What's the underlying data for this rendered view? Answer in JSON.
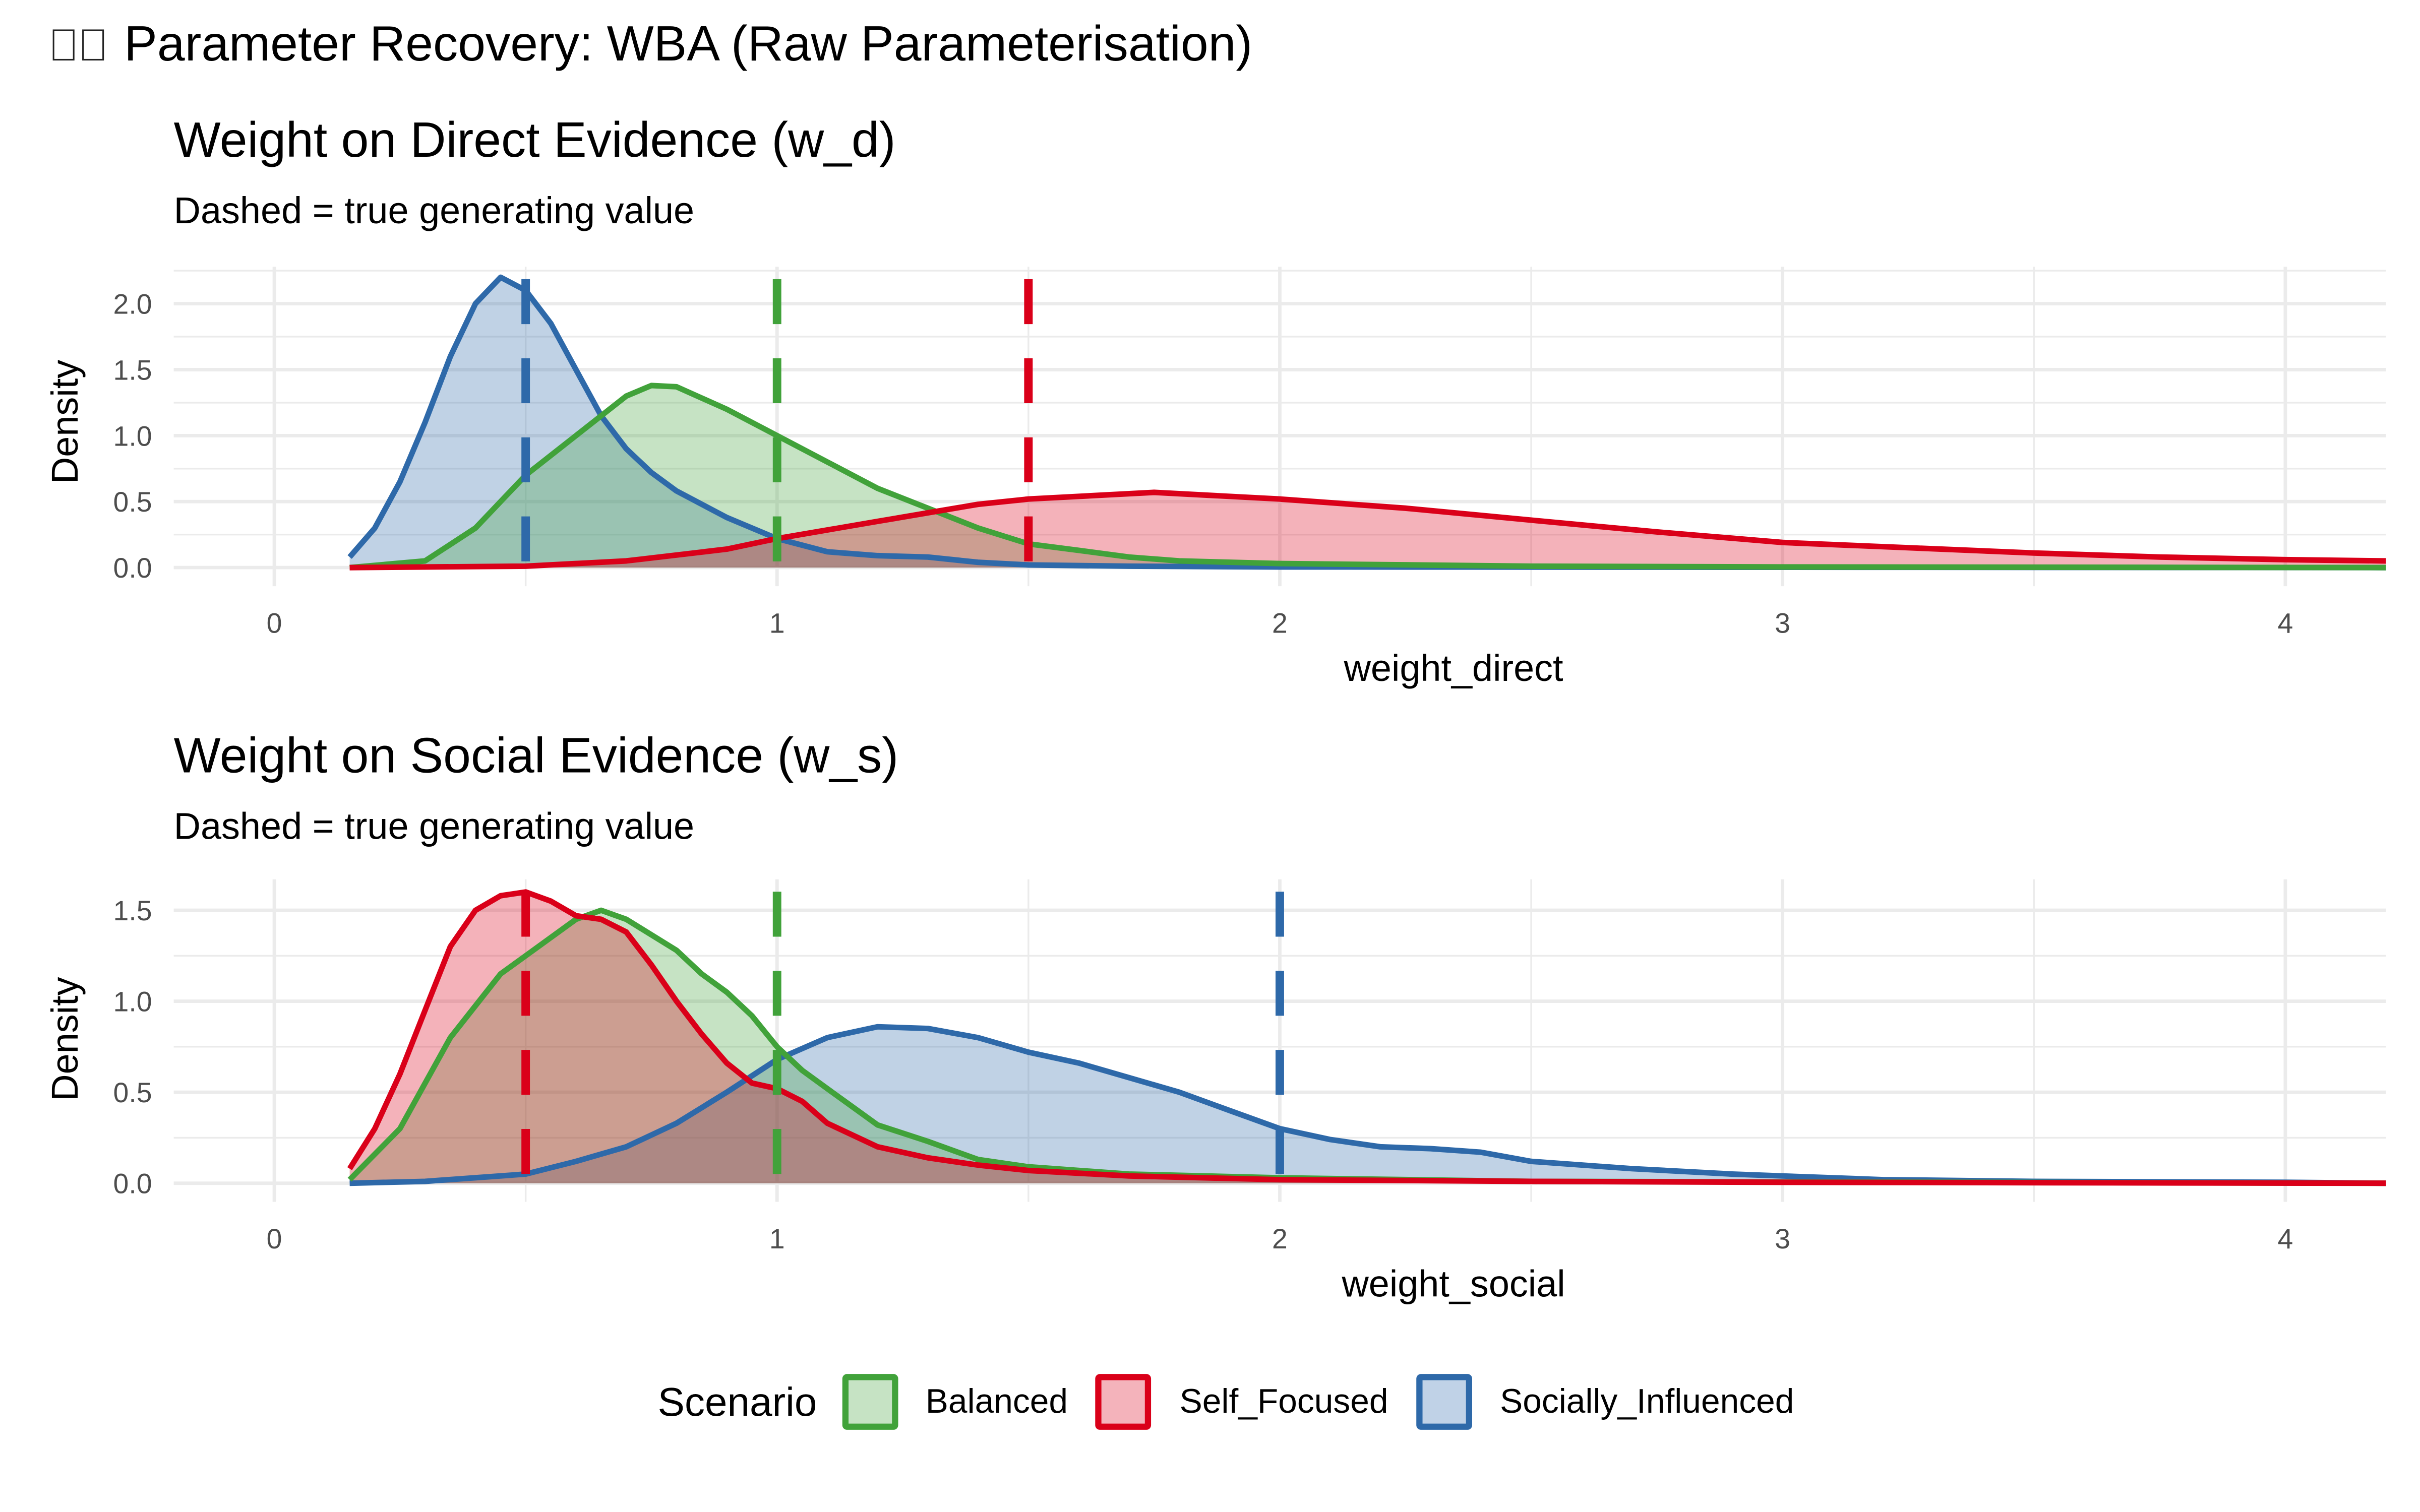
{
  "figure": {
    "title": "Parameter Recovery: WBA (Raw Parameterisation)",
    "title_icon": "missing-glyph-icon"
  },
  "legend": {
    "title": "Scenario",
    "items": [
      {
        "label": "Balanced",
        "color": "#41A23A",
        "fill": "#C6E3C4"
      },
      {
        "label": "Self_Focused",
        "color": "#DA0019",
        "fill": "#F4B3BB"
      },
      {
        "label": "Socially_Influenced",
        "color": "#2E69A9",
        "fill": "#C0D2E7"
      }
    ]
  },
  "chart_data": [
    {
      "type": "area",
      "subtype": "density",
      "title": "Weight on Direct Evidence (w_d)",
      "subtitle": "Dashed = true generating value",
      "xlabel": "weight_direct",
      "ylabel": "Density",
      "xlim": [
        -0.2,
        4.2
      ],
      "ylim": [
        0,
        2.28
      ],
      "xticks": [
        0,
        1,
        2,
        3,
        4
      ],
      "xtick_labels": [
        "0",
        "1",
        "2",
        "3",
        "4"
      ],
      "yticks": [
        0,
        0.5,
        1,
        1.5,
        2
      ],
      "ytick_labels": [
        "0.0",
        "0.5",
        "1.0",
        "1.5",
        "2.0"
      ],
      "grid": true,
      "legend": "bottom",
      "series": [
        {
          "name": "Balanced",
          "true_value": 1.0,
          "x": [
            0.15,
            0.3,
            0.4,
            0.5,
            0.6,
            0.7,
            0.75,
            0.8,
            0.9,
            1.0,
            1.1,
            1.2,
            1.3,
            1.4,
            1.5,
            1.6,
            1.7,
            1.8,
            2.0,
            2.5,
            3.0,
            4.2
          ],
          "y": [
            0.0,
            0.05,
            0.3,
            0.7,
            1.0,
            1.3,
            1.38,
            1.37,
            1.2,
            1.0,
            0.8,
            0.6,
            0.45,
            0.3,
            0.18,
            0.13,
            0.08,
            0.05,
            0.03,
            0.01,
            0.005,
            0.0
          ]
        },
        {
          "name": "Self_Focused",
          "true_value": 1.5,
          "x": [
            0.15,
            0.5,
            0.7,
            0.9,
            1.0,
            1.2,
            1.4,
            1.5,
            1.75,
            2.0,
            2.25,
            2.5,
            2.75,
            3.0,
            3.25,
            3.5,
            3.75,
            4.0,
            4.2
          ],
          "y": [
            0.0,
            0.01,
            0.05,
            0.14,
            0.22,
            0.35,
            0.48,
            0.52,
            0.57,
            0.52,
            0.45,
            0.36,
            0.27,
            0.19,
            0.15,
            0.11,
            0.08,
            0.06,
            0.05
          ]
        },
        {
          "name": "Socially_Influenced",
          "true_value": 0.5,
          "x": [
            0.15,
            0.2,
            0.25,
            0.3,
            0.35,
            0.4,
            0.45,
            0.5,
            0.55,
            0.6,
            0.65,
            0.7,
            0.75,
            0.8,
            0.9,
            1.0,
            1.1,
            1.2,
            1.3,
            1.4,
            1.5,
            1.7,
            2.0,
            4.2
          ],
          "y": [
            0.08,
            0.3,
            0.65,
            1.1,
            1.6,
            2.0,
            2.2,
            2.1,
            1.85,
            1.5,
            1.15,
            0.9,
            0.72,
            0.58,
            0.38,
            0.22,
            0.12,
            0.09,
            0.08,
            0.04,
            0.02,
            0.01,
            0.005,
            0.0
          ]
        }
      ]
    },
    {
      "type": "area",
      "subtype": "density",
      "title": "Weight on Social Evidence (w_s)",
      "subtitle": "Dashed = true generating value",
      "xlabel": "weight_social",
      "ylabel": "Density",
      "xlim": [
        -0.2,
        4.2
      ],
      "ylim": [
        0,
        1.67
      ],
      "xticks": [
        0,
        1,
        2,
        3,
        4
      ],
      "xtick_labels": [
        "0",
        "1",
        "2",
        "3",
        "4"
      ],
      "yticks": [
        0,
        0.5,
        1,
        1.5
      ],
      "ytick_labels": [
        "0.0",
        "0.5",
        "1.0",
        "1.5"
      ],
      "grid": true,
      "legend": "bottom",
      "series": [
        {
          "name": "Balanced",
          "true_value": 1.0,
          "x": [
            0.15,
            0.25,
            0.35,
            0.45,
            0.5,
            0.6,
            0.65,
            0.7,
            0.8,
            0.85,
            0.9,
            0.95,
            1.0,
            1.05,
            1.1,
            1.15,
            1.2,
            1.3,
            1.4,
            1.5,
            1.7,
            2.0,
            2.5,
            4.2
          ],
          "y": [
            0.02,
            0.3,
            0.8,
            1.15,
            1.25,
            1.45,
            1.5,
            1.45,
            1.28,
            1.15,
            1.05,
            0.92,
            0.75,
            0.62,
            0.52,
            0.42,
            0.32,
            0.23,
            0.13,
            0.09,
            0.05,
            0.03,
            0.01,
            0.0
          ]
        },
        {
          "name": "Self_Focused",
          "true_value": 0.5,
          "x": [
            0.15,
            0.2,
            0.25,
            0.3,
            0.35,
            0.4,
            0.45,
            0.5,
            0.55,
            0.6,
            0.65,
            0.7,
            0.75,
            0.8,
            0.85,
            0.9,
            0.95,
            1.0,
            1.05,
            1.1,
            1.2,
            1.3,
            1.4,
            1.5,
            1.7,
            2.0,
            2.5,
            3.0,
            4.2
          ],
          "y": [
            0.08,
            0.3,
            0.6,
            0.95,
            1.3,
            1.5,
            1.58,
            1.6,
            1.55,
            1.47,
            1.45,
            1.38,
            1.2,
            1.0,
            0.82,
            0.66,
            0.55,
            0.52,
            0.45,
            0.33,
            0.2,
            0.14,
            0.1,
            0.07,
            0.04,
            0.02,
            0.01,
            0.005,
            0.0
          ]
        },
        {
          "name": "Socially_Influenced",
          "true_value": 2.0,
          "x": [
            0.15,
            0.3,
            0.5,
            0.6,
            0.7,
            0.8,
            0.9,
            1.0,
            1.1,
            1.2,
            1.3,
            1.4,
            1.5,
            1.6,
            1.7,
            1.8,
            1.9,
            2.0,
            2.1,
            2.2,
            2.3,
            2.4,
            2.5,
            2.7,
            2.9,
            3.0,
            3.2,
            3.5,
            4.0,
            4.2
          ],
          "y": [
            0.0,
            0.01,
            0.05,
            0.12,
            0.2,
            0.33,
            0.5,
            0.68,
            0.8,
            0.86,
            0.85,
            0.8,
            0.72,
            0.66,
            0.58,
            0.5,
            0.4,
            0.3,
            0.24,
            0.2,
            0.19,
            0.17,
            0.12,
            0.08,
            0.05,
            0.04,
            0.02,
            0.01,
            0.005,
            0.0
          ]
        }
      ]
    }
  ]
}
